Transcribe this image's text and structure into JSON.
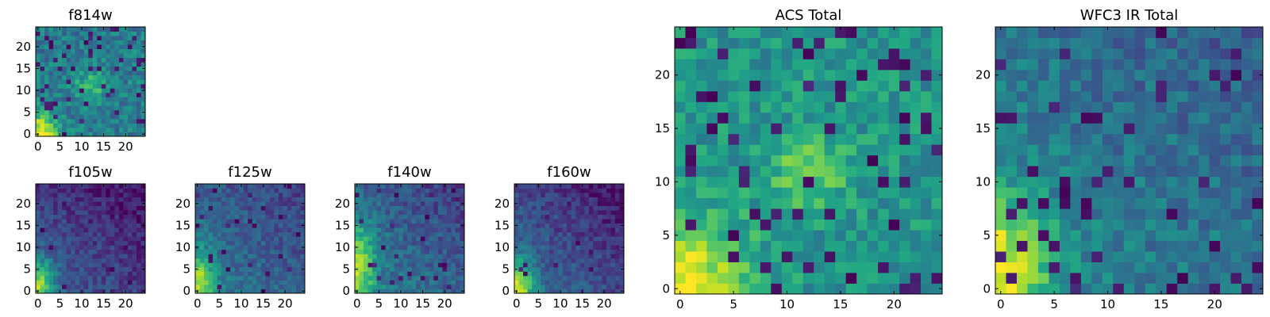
{
  "chart_data": [
    {
      "type": "heatmap",
      "title": "f814w",
      "xticks": [
        "0",
        "5",
        "10",
        "15",
        "20"
      ],
      "yticks": [
        "0",
        "5",
        "10",
        "15",
        "20"
      ],
      "xlim": [
        -0.5,
        24.5
      ],
      "ylim": [
        -0.5,
        24.5
      ],
      "grid": false,
      "colormap": "viridis",
      "seed": 101,
      "model": {
        "base": 0.42,
        "noise": 0.14,
        "lows": 0.07,
        "blobs": [
          {
            "x": 0,
            "y": 0,
            "sx": 3.2,
            "sy": 3.2,
            "a": 0.62
          },
          {
            "x": 12,
            "y": 11,
            "sx": 2.5,
            "sy": 2.5,
            "a": 0.26
          }
        ]
      }
    },
    {
      "type": "heatmap",
      "title": "f105w",
      "xticks": [
        "0",
        "5",
        "10",
        "15",
        "20"
      ],
      "yticks": [
        "0",
        "5",
        "10",
        "15",
        "20"
      ],
      "xlim": [
        -0.5,
        24.5
      ],
      "ylim": [
        -0.5,
        24.5
      ],
      "grid": false,
      "colormap": "viridis",
      "seed": 202,
      "model": {
        "base": 0.32,
        "noise": 0.1,
        "lows": 0.04,
        "gradient": -0.012,
        "blobs": [
          {
            "x": 0,
            "y": 1,
            "sx": 2.6,
            "sy": 4.5,
            "a": 0.55
          }
        ]
      }
    },
    {
      "type": "heatmap",
      "title": "f125w",
      "xticks": [
        "0",
        "5",
        "10",
        "15",
        "20"
      ],
      "yticks": [
        "0",
        "5",
        "10",
        "15",
        "20"
      ],
      "xlim": [
        -0.5,
        24.5
      ],
      "ylim": [
        -0.5,
        24.5
      ],
      "grid": false,
      "colormap": "viridis",
      "seed": 303,
      "model": {
        "base": 0.42,
        "noise": 0.1,
        "lows": 0.03,
        "gradient": -0.01,
        "blobs": [
          {
            "x": 0,
            "y": 2,
            "sx": 2.6,
            "sy": 5,
            "a": 0.48
          }
        ]
      }
    },
    {
      "type": "heatmap",
      "title": "f140w",
      "xticks": [
        "0",
        "5",
        "10",
        "15",
        "20"
      ],
      "yticks": [
        "0",
        "5",
        "10",
        "15",
        "20"
      ],
      "xlim": [
        -0.5,
        24.5
      ],
      "ylim": [
        -0.5,
        24.5
      ],
      "grid": false,
      "colormap": "viridis",
      "seed": 404,
      "model": {
        "base": 0.45,
        "noise": 0.11,
        "lows": 0.04,
        "gradient": -0.012,
        "blobs": [
          {
            "x": 0,
            "y": 6,
            "sx": 2.8,
            "sy": 7,
            "a": 0.45
          }
        ]
      }
    },
    {
      "type": "heatmap",
      "title": "f160w",
      "xticks": [
        "0",
        "5",
        "10",
        "15",
        "20"
      ],
      "yticks": [
        "0",
        "5",
        "10",
        "15",
        "20"
      ],
      "xlim": [
        -0.5,
        24.5
      ],
      "ylim": [
        -0.5,
        24.5
      ],
      "grid": false,
      "colormap": "viridis",
      "seed": 505,
      "model": {
        "base": 0.38,
        "noise": 0.1,
        "lows": 0.03,
        "gradient": -0.014,
        "blobs": [
          {
            "x": 0,
            "y": 1,
            "sx": 2.6,
            "sy": 4.5,
            "a": 0.58
          }
        ]
      }
    },
    {
      "type": "heatmap",
      "title": "ACS Total",
      "xticks": [
        "0",
        "5",
        "10",
        "15",
        "20"
      ],
      "yticks": [
        "0",
        "5",
        "10",
        "15",
        "20"
      ],
      "xlim": [
        -0.5,
        24.5
      ],
      "ylim": [
        -0.5,
        24.5
      ],
      "grid": false,
      "colormap": "viridis",
      "seed": 606,
      "model": {
        "base": 0.52,
        "noise": 0.13,
        "lows": 0.08,
        "blobs": [
          {
            "x": 0,
            "y": 0,
            "sx": 4.5,
            "sy": 4.5,
            "a": 0.48
          },
          {
            "x": 12,
            "y": 11,
            "sx": 2.4,
            "sy": 2.4,
            "a": 0.3
          }
        ]
      }
    },
    {
      "type": "heatmap",
      "title": "WFC3 IR Total",
      "xticks": [
        "0",
        "5",
        "10",
        "15",
        "20"
      ],
      "yticks": [
        "0",
        "5",
        "10",
        "15",
        "20"
      ],
      "xlim": [
        -0.5,
        24.5
      ],
      "ylim": [
        -0.5,
        24.5
      ],
      "grid": false,
      "colormap": "viridis",
      "seed": 707,
      "model": {
        "base": 0.48,
        "noise": 0.12,
        "lows": 0.07,
        "gradient": -0.008,
        "blobs": [
          {
            "x": 0,
            "y": 2,
            "sx": 3.2,
            "sy": 5,
            "a": 0.48
          }
        ]
      }
    }
  ]
}
